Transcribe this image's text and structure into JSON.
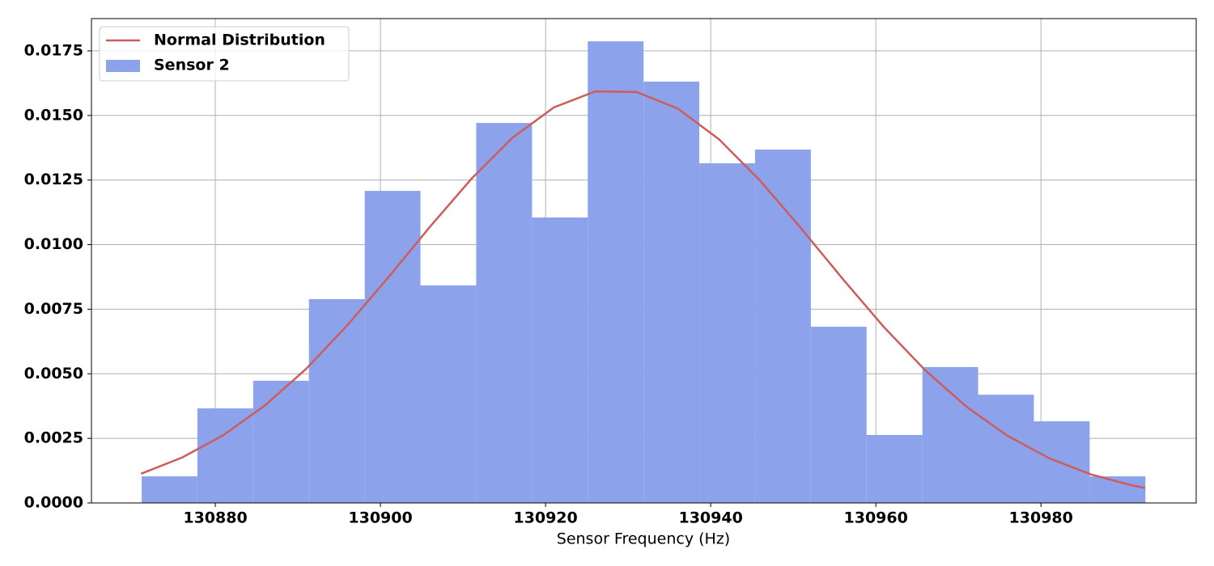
{
  "chart_data": {
    "type": "histogram",
    "xlabel": "Sensor Frequency (Hz)",
    "xlim": [
      130865.0,
      130998.8
    ],
    "ylim": [
      0,
      0.01875
    ],
    "xticks": [
      130880,
      130900,
      130920,
      130940,
      130960,
      130980
    ],
    "yticks": [
      {
        "value": 0,
        "label": "0.0000"
      },
      {
        "value": 0.0025,
        "label": "0.0025"
      },
      {
        "value": 0.005,
        "label": "0.0050"
      },
      {
        "value": 0.0075,
        "label": "0.0075"
      },
      {
        "value": 0.01,
        "label": "0.0100"
      },
      {
        "value": 0.0125,
        "label": "0.0125"
      },
      {
        "value": 0.015,
        "label": "0.0150"
      },
      {
        "value": 0.0175,
        "label": "0.0175"
      }
    ],
    "grid": true,
    "legend": "upper left",
    "series": [
      {
        "name": "Sensor 2",
        "type": "histogram",
        "color": "#8ca3ec",
        "bins": [
          130871.08,
          130877.83,
          130884.59,
          130891.34,
          130898.1,
          130904.85,
          130911.6,
          130918.36,
          130925.11,
          130931.87,
          130938.62,
          130945.37,
          130952.13,
          130958.88,
          130965.64,
          130972.39,
          130979.14,
          130985.9,
          130992.65
        ],
        "values": [
          0.00103,
          0.00366,
          0.00473,
          0.00789,
          0.01208,
          0.00842,
          0.01471,
          0.01105,
          0.01787,
          0.01631,
          0.01315,
          0.01368,
          0.00682,
          0.00263,
          0.00526,
          0.00419,
          0.00316,
          0.00103
        ]
      },
      {
        "name": "Normal Distribution",
        "type": "line",
        "color": "#cd5c5c",
        "x": [
          130871,
          130876,
          130881,
          130886,
          130891,
          130896,
          130901,
          130906,
          130911,
          130916,
          130921,
          130926,
          130931,
          130936,
          130941,
          130946,
          130951,
          130956,
          130961,
          130966,
          130971,
          130976,
          130981,
          130986,
          130991,
          130992.6
        ],
        "values": [
          0.00113,
          0.00176,
          0.00263,
          0.00377,
          0.00519,
          0.00688,
          0.00875,
          0.01069,
          0.01254,
          0.01414,
          0.01531,
          0.01593,
          0.01591,
          0.01527,
          0.01408,
          0.01247,
          0.01061,
          0.00867,
          0.0068,
          0.00513,
          0.00372,
          0.00259,
          0.00173,
          0.00111,
          0.00068,
          0.00058
        ]
      }
    ]
  }
}
